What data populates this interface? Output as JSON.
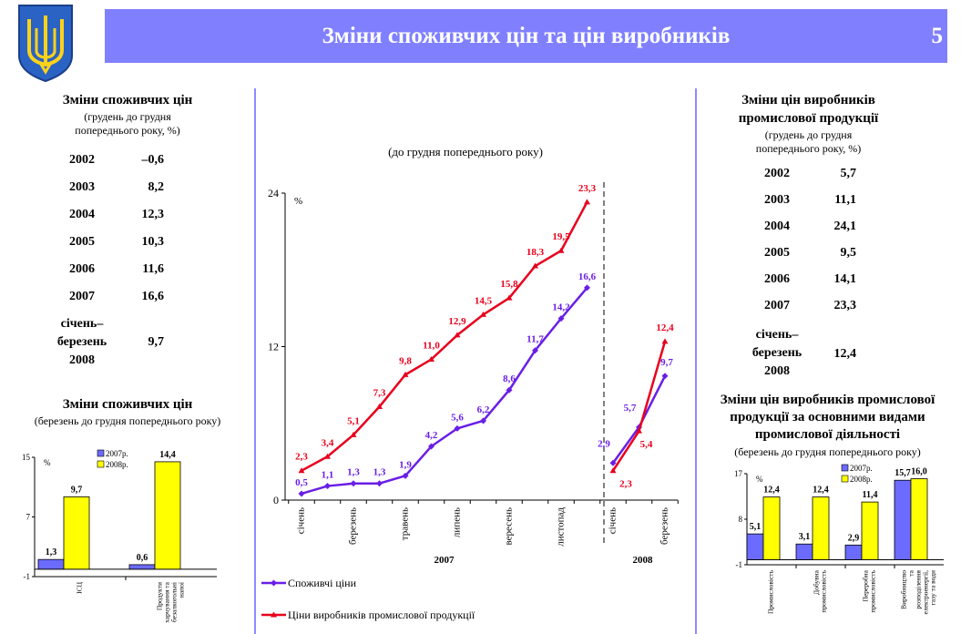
{
  "header": {
    "title": "Зміни споживчих цін та цін виробників",
    "page_number": "5"
  },
  "colors": {
    "accent": "#8080ff",
    "cpi_line": "#6a1ee6",
    "ppi_line": "#e8001c",
    "bar_2007": "#6b6bff",
    "bar_2008": "#ffff00"
  },
  "left_table": {
    "title": "Зміни споживчих цін",
    "subtitle_line1": "(грудень до грудня",
    "subtitle_line2": "попереднього року, %)",
    "rows": [
      {
        "year": "2002",
        "value": "–0,6"
      },
      {
        "year": "2003",
        "value": "8,2"
      },
      {
        "year": "2004",
        "value": "12,3"
      },
      {
        "year": "2005",
        "value": "10,3"
      },
      {
        "year": "2006",
        "value": "11,6"
      },
      {
        "year": "2007",
        "value": "16,6"
      }
    ],
    "last_label_line1": "січень–",
    "last_label_line2": "березень",
    "last_label_line3": "2008",
    "last_value": "9,7"
  },
  "right_table": {
    "title_line1": "Зміни цін виробників",
    "title_line2": "промислової продукції",
    "subtitle_line1": "(грудень до грудня",
    "subtitle_line2": "попереднього року, %)",
    "rows": [
      {
        "year": "2002",
        "value": "5,7"
      },
      {
        "year": "2003",
        "value": "11,1"
      },
      {
        "year": "2004",
        "value": "24,1"
      },
      {
        "year": "2005",
        "value": "9,5"
      },
      {
        "year": "2006",
        "value": "14,1"
      },
      {
        "year": "2007",
        "value": "23,3"
      }
    ],
    "last_label_line1": "січень–",
    "last_label_line2": "березень",
    "last_label_line3": "2008",
    "last_value": "12,4"
  },
  "chart_data": [
    {
      "type": "line",
      "title": "(до грудня попереднього року)",
      "ylabel": "%",
      "ylim": [
        0,
        24
      ],
      "yticks": [
        "0",
        "12",
        "24"
      ],
      "x": [
        "січень",
        "",
        "березень",
        "",
        "травень",
        "",
        "липень",
        "",
        "вересень",
        "",
        "листопад",
        "",
        "січень",
        "",
        "березень"
      ],
      "year_labels": [
        "2007",
        "2008"
      ],
      "series": [
        {
          "name": "Споживчі ціни",
          "segment_2007": [
            0.5,
            1.1,
            1.3,
            1.3,
            1.9,
            4.2,
            5.6,
            6.2,
            8.6,
            11.7,
            14.2,
            16.6
          ],
          "segment_2008": [
            2.9,
            5.7,
            9.7
          ],
          "labels_2007": [
            "0,5",
            "1,1",
            "1,3",
            "1,3",
            "1,9",
            "4,2",
            "5,6",
            "6,2",
            "8,6",
            "11,7",
            "14,2",
            "16,6"
          ],
          "labels_2008": [
            "2,9",
            "5,7",
            "9,7"
          ]
        },
        {
          "name": "Ціни виробників промислової продукції",
          "segment_2007": [
            2.3,
            3.4,
            5.1,
            7.3,
            9.8,
            11.0,
            12.9,
            14.5,
            15.8,
            18.3,
            19.5,
            23.3
          ],
          "segment_2008": [
            2.3,
            5.4,
            12.4
          ],
          "labels_2007": [
            "2,3",
            "3,4",
            "5,1",
            "7,3",
            "9,8",
            "11,0",
            "12,9",
            "14,5",
            "15,8",
            "18,3",
            "19,5",
            "23,3"
          ],
          "labels_2008": [
            "2,3",
            "5,4",
            "12,4"
          ]
        }
      ]
    },
    {
      "type": "bar",
      "title": "Зміни споживчих цін",
      "subtitle": "(березень до грудня попереднього року)",
      "ylabel": "%",
      "ylim": [
        -1,
        15
      ],
      "yticks": [
        "-1",
        "7",
        "15"
      ],
      "categories": [
        "ІСЦ",
        "Продукти харчування та безалкогольні напої"
      ],
      "category_lines": [
        [
          "ІСЦ"
        ],
        [
          "Продукти",
          "харчування та",
          "безалкогольні",
          "напої"
        ]
      ],
      "series": [
        {
          "name": "2007р.",
          "values": [
            1.3,
            0.6
          ],
          "labels": [
            "1,3",
            "0,6"
          ]
        },
        {
          "name": "2008р.",
          "values": [
            9.7,
            14.4
          ],
          "labels": [
            "9,7",
            "14,4"
          ]
        }
      ]
    },
    {
      "type": "bar",
      "title": "Зміни цін виробників промислової продукції за основними видами промислової діяльності",
      "title_lines": [
        "Зміни цін виробників промислової",
        "продукції за основними видами",
        "промислової діяльності"
      ],
      "subtitle": "(березень до грудня попереднього року)",
      "ylabel": "%",
      "ylim": [
        -1,
        17
      ],
      "yticks": [
        "-1",
        "8",
        "17"
      ],
      "categories": [
        "Промисловість",
        "Добувна промисловість",
        "Переробна промисловість",
        "Виробництво та розподілення електроенергії, газу та води"
      ],
      "category_lines": [
        [
          "Промисловість"
        ],
        [
          "Добувна",
          "промисловість"
        ],
        [
          "Переробна",
          "промисловість"
        ],
        [
          "Виробництво",
          "та",
          "розподілення",
          "електроенергії,",
          "газу та води"
        ]
      ],
      "series": [
        {
          "name": "2007р.",
          "values": [
            5.1,
            3.1,
            2.9,
            15.7
          ],
          "labels": [
            "5,1",
            "3,1",
            "2,9",
            "15,7"
          ]
        },
        {
          "name": "2008р.",
          "values": [
            12.4,
            12.4,
            11.4,
            16.0
          ],
          "labels": [
            "12,4",
            "12,4",
            "11,4",
            "16,0"
          ]
        }
      ]
    }
  ]
}
